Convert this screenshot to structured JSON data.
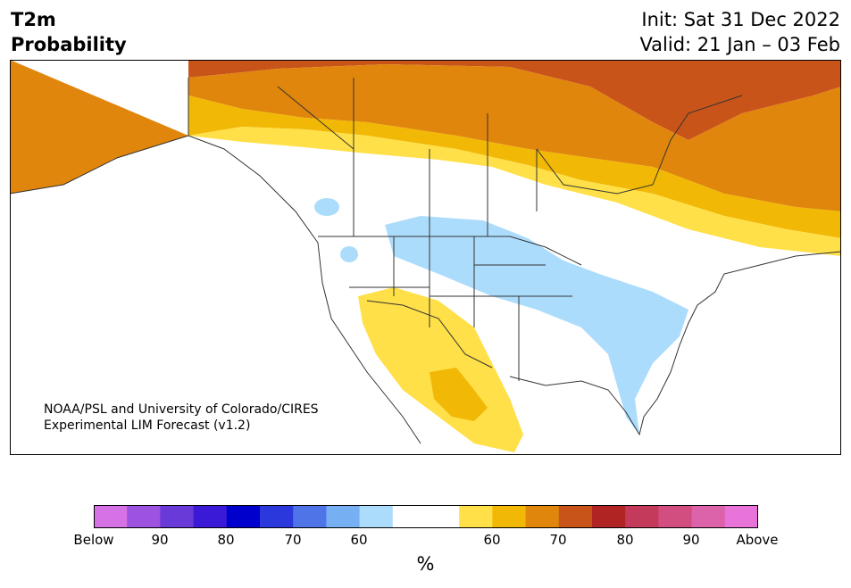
{
  "title": {
    "line1": "T2m",
    "line2": "Probability"
  },
  "init": "Init: Sat 31 Dec 2022",
  "valid": "Valid: 21 Jan – 03 Feb",
  "credit": {
    "line1": "NOAA/PSL and University of Colorado/CIRES",
    "line2": "Experimental LIM Forecast (v1.2)"
  },
  "colorbar": {
    "colors": [
      "#d672e6",
      "#9d52e0",
      "#6a3ad8",
      "#3a1ad6",
      "#0000cc",
      "#2a38dc",
      "#4f74e8",
      "#76b0f2",
      "#acdcfc",
      "#ffffff",
      "#ffffff",
      "#ffe048",
      "#f2b806",
      "#e0860c",
      "#c8541a",
      "#b02424",
      "#c43a5a",
      "#d24e80",
      "#dc62aa",
      "#e874da"
    ],
    "tick_labels": [
      "Below",
      "90",
      "80",
      "70",
      "60",
      "60",
      "70",
      "80",
      "90",
      "Above"
    ],
    "unit": "%"
  },
  "map_colors": {
    "ocean": "#ffffff",
    "land": "#ffffff",
    "border": "#333333",
    "above_60": "#ffe048",
    "above_70": "#f2b806",
    "above_80": "#e0860c",
    "above_90": "#c8541a",
    "below_60": "#acdcfc",
    "below_70": "#76b0f2"
  }
}
